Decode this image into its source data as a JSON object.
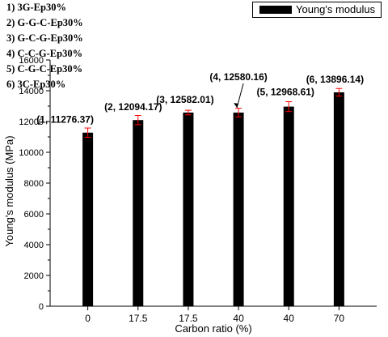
{
  "chart_data": {
    "type": "bar",
    "categories": [
      "0",
      "17.5",
      "17.5",
      "40",
      "40",
      "70"
    ],
    "series": [
      {
        "name": "Young's modulus",
        "values": [
          11276.37,
          12094.17,
          12582.01,
          12580.16,
          12968.61,
          13896.14
        ],
        "errors": [
          300,
          300,
          150,
          280,
          320,
          250
        ],
        "color": "#000000",
        "error_color": "#ff0000"
      }
    ],
    "data_labels": [
      "(1, 11276.37)",
      "(2, 12094.17)",
      "(3, 12582.01)",
      "(4, 12580.16)",
      "(5, 12968.61)",
      "(6, 13896.14)"
    ],
    "xlabel": "Carbon ratio (%)",
    "ylabel": "Young's modulus (MPa)",
    "ylim": [
      0,
      16000
    ],
    "yticks": [
      "0",
      "2000",
      "4000",
      "6000",
      "8000",
      "10000",
      "12000",
      "14000",
      "16000"
    ],
    "grid": false,
    "legend_position": "top-right",
    "sample_list": [
      "1) 3G-Ep30%",
      "2) G-G-C-Ep30%",
      "3) G-C-G-Ep30%",
      "4) C-C-G-Ep30%",
      "5) C-G-C-Ep30%",
      "6) 3C-Ep30%"
    ]
  }
}
